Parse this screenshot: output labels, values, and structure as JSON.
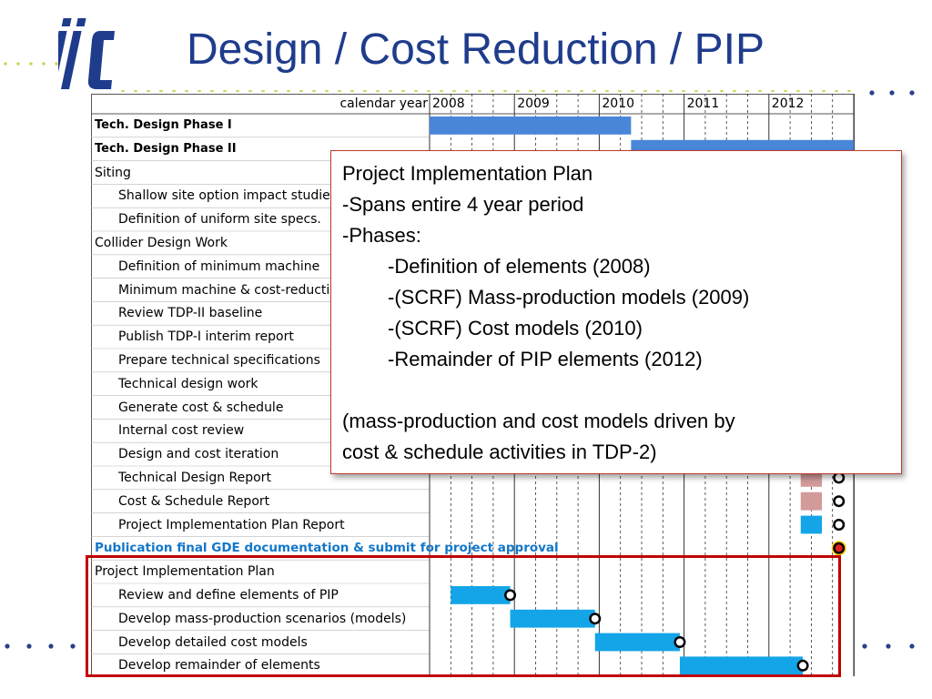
{
  "slide": {
    "title": "Design / Cost Reduction / PIP",
    "logo_text": "ilc",
    "accent_color": "#1f3c8c"
  },
  "gantt": {
    "calendar_label": "calendar year",
    "years": [
      "2008",
      "2009",
      "2010",
      "2011",
      "2012"
    ],
    "rows": [
      {
        "label": "Tech. Design Phase I",
        "style": "bold"
      },
      {
        "label": "Tech. Design Phase II",
        "style": "bold"
      },
      {
        "label": "Siting",
        "style": "group"
      },
      {
        "label": "Shallow site option impact studies",
        "style": "task"
      },
      {
        "label": "Definition of uniform site specs.",
        "style": "task"
      },
      {
        "label": "Collider Design Work",
        "style": "group"
      },
      {
        "label": "Definition of minimum machine",
        "style": "task"
      },
      {
        "label": "Minimum machine & cost-reduction",
        "style": "task"
      },
      {
        "label": "Review TDP-II baseline",
        "style": "task"
      },
      {
        "label": "Publish TDP-I interim report",
        "style": "task"
      },
      {
        "label": "Prepare technical specifications",
        "style": "task"
      },
      {
        "label": "Technical design work",
        "style": "task"
      },
      {
        "label": "Generate cost & schedule",
        "style": "task"
      },
      {
        "label": "Internal cost review",
        "style": "task"
      },
      {
        "label": "Design and cost iteration",
        "style": "task"
      },
      {
        "label": "Technical Design Report",
        "style": "task"
      },
      {
        "label": "Cost & Schedule Report",
        "style": "task"
      },
      {
        "label": "Project Implementation Plan Report",
        "style": "task"
      },
      {
        "label": "Publication final GDE documentation & submit for project approval",
        "style": "blue"
      },
      {
        "label": "Project Implementation Plan",
        "style": "group"
      },
      {
        "label": "Review and define elements of PIP",
        "style": "task"
      },
      {
        "label": "Develop mass-production scenarios (models)",
        "style": "task"
      },
      {
        "label": "Develop detailed cost models",
        "style": "task"
      },
      {
        "label": "Develop remainder of elements",
        "style": "task"
      }
    ],
    "colors": {
      "phase_bar": "#4a86d8",
      "task_bar": "#14a5e8",
      "pink_bar": "#d39a9a",
      "milestone_fill": "#ffffff",
      "milestone_final": "#ffcc00"
    }
  },
  "callout": {
    "lines": [
      {
        "text": "Project Implementation Plan",
        "indent": false
      },
      {
        "text": "-Spans entire 4 year period",
        "indent": false
      },
      {
        "text": "-Phases:",
        "indent": false
      },
      {
        "text": "-Definition of elements (2008)",
        "indent": true
      },
      {
        "text": "-(SCRF) Mass-production models (2009)",
        "indent": true
      },
      {
        "text": "-(SCRF) Cost models (2010)",
        "indent": true
      },
      {
        "text": "-Remainder of PIP elements (2012)",
        "indent": true
      }
    ],
    "note_line1": "(mass-production and cost models driven by",
    "note_line2": "cost & schedule activities in TDP-2)"
  }
}
